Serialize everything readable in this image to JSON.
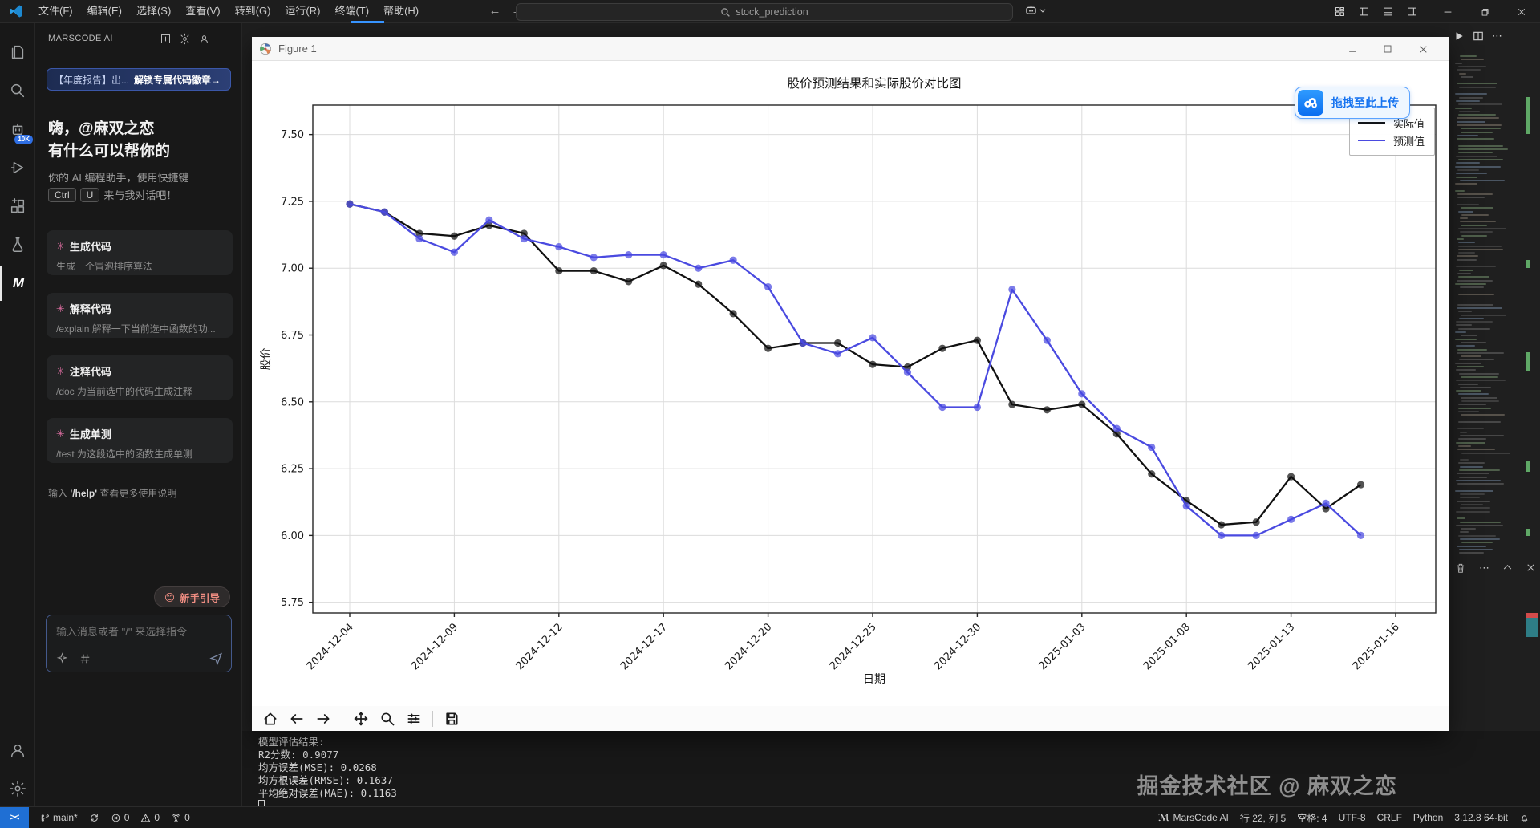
{
  "title_bar": {
    "menus": [
      "文件(F)",
      "编辑(E)",
      "选择(S)",
      "查看(V)",
      "转到(G)",
      "运行(R)",
      "终端(T)",
      "帮助(H)"
    ],
    "nav_icons": [
      "arrow-left",
      "arrow-right"
    ],
    "search": {
      "icon": "search-icon",
      "value": "stock_prediction"
    },
    "copilot_icon": "copilot-robot",
    "layout_icons": [
      "customize-layout",
      "toggle-sidebar",
      "toggle-panel",
      "toggle-secondary-sidebar"
    ],
    "window_controls": [
      "minimize",
      "restore",
      "close"
    ]
  },
  "activity_bar": {
    "items": [
      {
        "icon": "explorer",
        "active": false
      },
      {
        "icon": "search",
        "active": false
      },
      {
        "icon": "ai-chat",
        "active": false,
        "badge": "10K"
      },
      {
        "icon": "run-debug",
        "active": false
      },
      {
        "icon": "extensions",
        "active": false
      },
      {
        "icon": "test-flask",
        "active": false
      },
      {
        "icon": "marscode-m",
        "active": true
      }
    ],
    "bottom_items": [
      {
        "icon": "account"
      },
      {
        "icon": "settings-gear"
      }
    ]
  },
  "sidebar": {
    "header": {
      "title": "MARSCODE AI",
      "icons": [
        "new-chat-plus",
        "settings-gear",
        "user",
        "ellipsis"
      ]
    },
    "banner": {
      "left": "【年度报告】出...",
      "right": "解锁专属代码徽章→"
    },
    "greeting_line1": "嗨，@麻双之恋",
    "greeting_line2": "有什么可以帮你的",
    "helper_text": "你的 AI 编程助手，使用快捷键",
    "shortcut_keys": [
      "Ctrl",
      "U"
    ],
    "helper_suffix": "来与我对话吧！",
    "cards": [
      {
        "title": "生成代码",
        "desc": "生成一个冒泡排序算法"
      },
      {
        "title": "解释代码",
        "desc": "/explain 解释一下当前选中函数的功..."
      },
      {
        "title": "注释代码",
        "desc": "/doc 为当前选中的代码生成注释"
      },
      {
        "title": "生成单测",
        "desc": "/test 为这段选中的函数生成单测"
      }
    ],
    "tip_prefix": "输入 ",
    "tip_code": "'/help'",
    "tip_suffix": " 查看更多使用说明",
    "guide_button": {
      "emoji": "😊",
      "label": "新手引导"
    },
    "input": {
      "placeholder": "输入消息或者 \"/\" 来选择指令",
      "icons": [
        "spark",
        "hash",
        "send"
      ]
    }
  },
  "figure_window": {
    "title": "Figure 1",
    "window_controls": [
      "minimize",
      "maximize",
      "close"
    ],
    "toolbar_icons": [
      "home",
      "back",
      "forward",
      "pan",
      "zoom-to-rect",
      "configure-subplots",
      "save"
    ],
    "upload_button": {
      "icon": "cloud-drive",
      "label": "拖拽至此上传"
    }
  },
  "chart_data": {
    "type": "line",
    "title": "股价预测结果和实际股价对比图",
    "xlabel": "日期",
    "ylabel": "股价",
    "grid": true,
    "legend_position": "upper right",
    "x": [
      "2024-12-04",
      "2024-12-05",
      "2024-12-06",
      "2024-12-09",
      "2024-12-10",
      "2024-12-11",
      "2024-12-12",
      "2024-12-13",
      "2024-12-16",
      "2024-12-17",
      "2024-12-18",
      "2024-12-19",
      "2024-12-20",
      "2024-12-23",
      "2024-12-24",
      "2024-12-25",
      "2024-12-26",
      "2024-12-27",
      "2024-12-30",
      "2024-12-31",
      "2025-01-02",
      "2025-01-03",
      "2025-01-06",
      "2025-01-07",
      "2025-01-08",
      "2025-01-09",
      "2025-01-10",
      "2025-01-13",
      "2025-01-14",
      "2025-01-15"
    ],
    "series": [
      {
        "name": "实际值",
        "color": "#111111",
        "values": [
          7.24,
          7.21,
          7.13,
          7.12,
          7.16,
          7.13,
          6.99,
          6.99,
          6.95,
          7.01,
          6.94,
          6.83,
          6.7,
          6.72,
          6.72,
          6.64,
          6.63,
          6.7,
          6.73,
          6.49,
          6.47,
          6.49,
          6.38,
          6.23,
          6.13,
          6.04,
          6.05,
          6.22,
          6.1,
          6.19
        ]
      },
      {
        "name": "预测值",
        "color": "#4a4ae0",
        "values": [
          7.24,
          7.21,
          7.11,
          7.06,
          7.18,
          7.11,
          7.08,
          7.04,
          7.05,
          7.05,
          7.0,
          7.03,
          6.93,
          6.72,
          6.68,
          6.74,
          6.61,
          6.48,
          6.48,
          6.92,
          6.73,
          6.53,
          6.4,
          6.33,
          6.11,
          6.0,
          6.0,
          6.06,
          6.12,
          6.0
        ]
      }
    ],
    "x_tick_labels": [
      "2024-12-04",
      "2024-12-09",
      "2024-12-12",
      "2024-12-17",
      "2024-12-20",
      "2024-12-25",
      "2024-12-30",
      "2025-01-03",
      "2025-01-08",
      "2025-01-13",
      "2025-01-16"
    ],
    "x_tick_indices": [
      0,
      3,
      6,
      9,
      12,
      15,
      18,
      21,
      24,
      27,
      30
    ],
    "y_ticks": [
      5.75,
      6.0,
      6.25,
      6.5,
      6.75,
      7.0,
      7.25,
      7.5
    ],
    "ylim": [
      5.71,
      7.61
    ],
    "x_tick_rotation": 45
  },
  "terminal": {
    "lines": [
      "模型评估结果:",
      "R2分数: 0.9077",
      "均方误差(MSE): 0.0268",
      "均方根误差(RMSE): 0.1637",
      "平均绝对误差(MAE): 0.1163"
    ]
  },
  "watermark": "掘金技术社区 @ 麻双之恋",
  "status_bar": {
    "remote_icon": "><",
    "left_items": [
      {
        "icon": "git-branch",
        "label": "main*"
      },
      {
        "icon": "sync",
        "label": ""
      },
      {
        "icon": "error-circle",
        "label": "0"
      },
      {
        "icon": "warning-triangle",
        "label": "0"
      },
      {
        "icon": "broadcast-tower",
        "label": "0"
      }
    ],
    "right_items": [
      {
        "icon": "marscode-logo",
        "label": "MarsCode AI"
      },
      {
        "icon": "",
        "label": "行 22, 列 5"
      },
      {
        "icon": "",
        "label": "空格: 4"
      },
      {
        "icon": "",
        "label": "UTF-8"
      },
      {
        "icon": "",
        "label": "CRLF"
      },
      {
        "icon": "",
        "label": "Python"
      },
      {
        "icon": "",
        "label": "3.12.8 64-bit"
      },
      {
        "icon": "bell",
        "label": ""
      }
    ]
  }
}
